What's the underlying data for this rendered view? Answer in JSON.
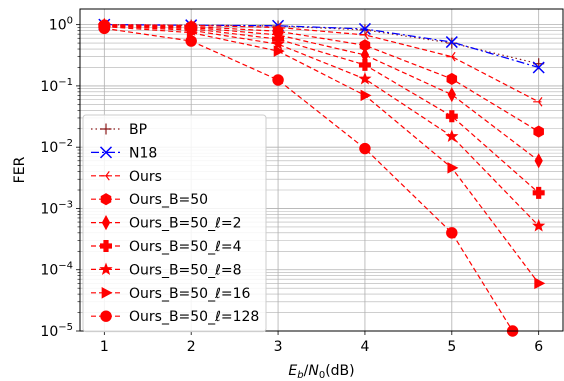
{
  "chart_data": {
    "type": "line",
    "xlabel": "E_b/N_0(dB)",
    "ylabel": "FER",
    "xlim": [
      0.72,
      6.28
    ],
    "ylim": [
      1e-05,
      1.8
    ],
    "yscale": "log",
    "grid": true,
    "legend_position": "lower-left",
    "x_ticks": [
      1,
      2,
      3,
      4,
      5,
      6
    ],
    "y_ticks": [
      1e-05,
      0.0001,
      0.001,
      0.01,
      0.1,
      1
    ],
    "y_tick_labels": [
      {
        "base": "10",
        "exp": "−5"
      },
      {
        "base": "10",
        "exp": "−4"
      },
      {
        "base": "10",
        "exp": "−3"
      },
      {
        "base": "10",
        "exp": "−2"
      },
      {
        "base": "10",
        "exp": "−1"
      },
      {
        "base": "10",
        "exp": "0"
      }
    ],
    "series": [
      {
        "name": "BP",
        "color": "#8b1a1a",
        "dash": "1.5,3",
        "marker": "plus",
        "x": [
          1,
          2,
          3,
          4,
          5,
          6
        ],
        "y": [
          1.0,
          0.98,
          0.95,
          0.82,
          0.5,
          0.23
        ]
      },
      {
        "name": "N18",
        "color": "#0000ff",
        "dash": "8,3,2,3",
        "marker": "x",
        "x": [
          1,
          2,
          3,
          4,
          5,
          6
        ],
        "y": [
          1.0,
          0.98,
          0.96,
          0.85,
          0.52,
          0.2
        ]
      },
      {
        "name": "Ours",
        "color": "#ff0000",
        "dash": "5,3",
        "marker": "tri_left",
        "x": [
          1,
          2,
          3,
          4,
          5,
          6
        ],
        "y": [
          1.0,
          0.97,
          0.9,
          0.68,
          0.3,
          0.055
        ]
      },
      {
        "name": "Ours_B=50",
        "color": "#ff0000",
        "dash": "5,3",
        "marker": "hexagon",
        "x": [
          1,
          2,
          3,
          4,
          5,
          6
        ],
        "y": [
          0.98,
          0.93,
          0.78,
          0.46,
          0.13,
          0.018
        ]
      },
      {
        "name": "Ours_B=50_ℓ=2",
        "color": "#ff0000",
        "dash": "5,3",
        "marker": "thin_diamond",
        "x": [
          1,
          2,
          3,
          4,
          5,
          6
        ],
        "y": [
          0.97,
          0.9,
          0.68,
          0.32,
          0.072,
          0.006
        ]
      },
      {
        "name": "Ours_B=50_ℓ=4",
        "color": "#ff0000",
        "dash": "5,3",
        "marker": "plus_filled",
        "x": [
          1,
          2,
          3,
          4,
          5,
          6
        ],
        "y": [
          0.96,
          0.86,
          0.58,
          0.22,
          0.032,
          0.0018
        ]
      },
      {
        "name": "Ours_B=50_ℓ=8",
        "color": "#ff0000",
        "dash": "5,3",
        "marker": "star",
        "x": [
          1,
          2,
          3,
          4,
          5,
          6
        ],
        "y": [
          0.95,
          0.81,
          0.48,
          0.13,
          0.015,
          0.00052
        ]
      },
      {
        "name": "Ours_B=50_ℓ=16",
        "color": "#ff0000",
        "dash": "5,3",
        "marker": "tri_right",
        "x": [
          1,
          2,
          3,
          4,
          5,
          6
        ],
        "y": [
          0.93,
          0.74,
          0.37,
          0.07,
          0.0046,
          6e-05
        ]
      },
      {
        "name": "Ours_B=50_ℓ=128",
        "color": "#ff0000",
        "dash": "5,3",
        "marker": "circle",
        "x": [
          1,
          2,
          3,
          4,
          5,
          5.7
        ],
        "y": [
          0.87,
          0.54,
          0.125,
          0.0095,
          0.0004,
          1e-05
        ]
      }
    ]
  }
}
